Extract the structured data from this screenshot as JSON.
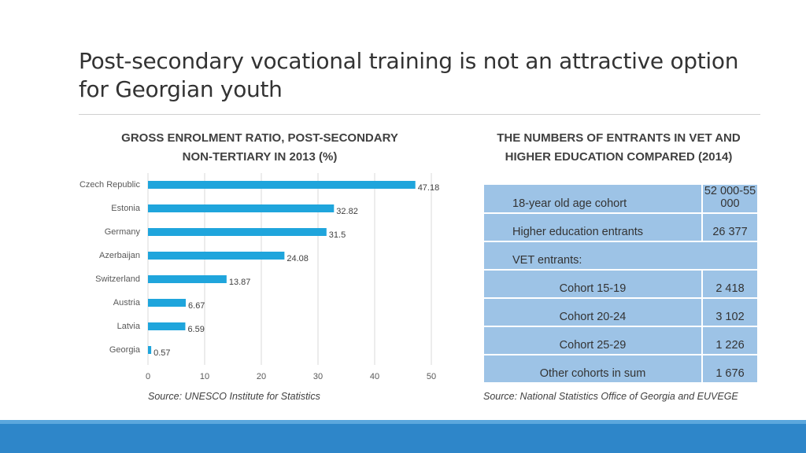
{
  "slide": {
    "title": "Post-secondary vocational training is not an attractive option for Georgian youth"
  },
  "left_panel": {
    "title": "GROSS ENROLMENT RATIO, POST-SECONDARY NON-TERTIARY IN 2013 (%)",
    "source": "Source: UNESCO Institute for Statistics"
  },
  "chart_data": {
    "type": "bar",
    "orientation": "horizontal",
    "title": "GROSS ENROLMENT RATIO, POST-SECONDARY NON-TERTIARY IN 2013 (%)",
    "categories": [
      "Czech Republic",
      "Estonia",
      "Germany",
      "Azerbaijan",
      "Switzerland",
      "Austria",
      "Latvia",
      "Georgia"
    ],
    "values": [
      47.18,
      32.82,
      31.5,
      24.08,
      13.87,
      6.67,
      6.59,
      0.57
    ],
    "data_labels": [
      "47.18",
      "32.82",
      "31.5",
      "24.08",
      "13.87",
      "6.67",
      "6.59",
      "0.57"
    ],
    "xlim": [
      0,
      50
    ],
    "xticks": [
      0,
      10,
      20,
      30,
      40,
      50
    ],
    "grid": true,
    "legend": "none",
    "bar_color": "#1fa5dc"
  },
  "right_panel": {
    "title": "THE NUMBERS OF ENTRANTS IN VET AND HIGHER EDUCATION COMPARED (2014)",
    "source": "Source: National Statistics Office of Georgia and EUVEGE",
    "rows": [
      {
        "label": "18-year old age cohort",
        "value": "52 000-55 000"
      },
      {
        "label": "Higher education entrants",
        "value": "26 377"
      },
      {
        "label": "VET entrants:",
        "value": ""
      },
      {
        "label": "Cohort 15-19",
        "value": "2 418"
      },
      {
        "label": "Cohort 20-24",
        "value": "3 102"
      },
      {
        "label": "Cohort 25-29",
        "value": "1 226"
      },
      {
        "label": "Other cohorts in sum",
        "value": "1 676"
      }
    ]
  }
}
